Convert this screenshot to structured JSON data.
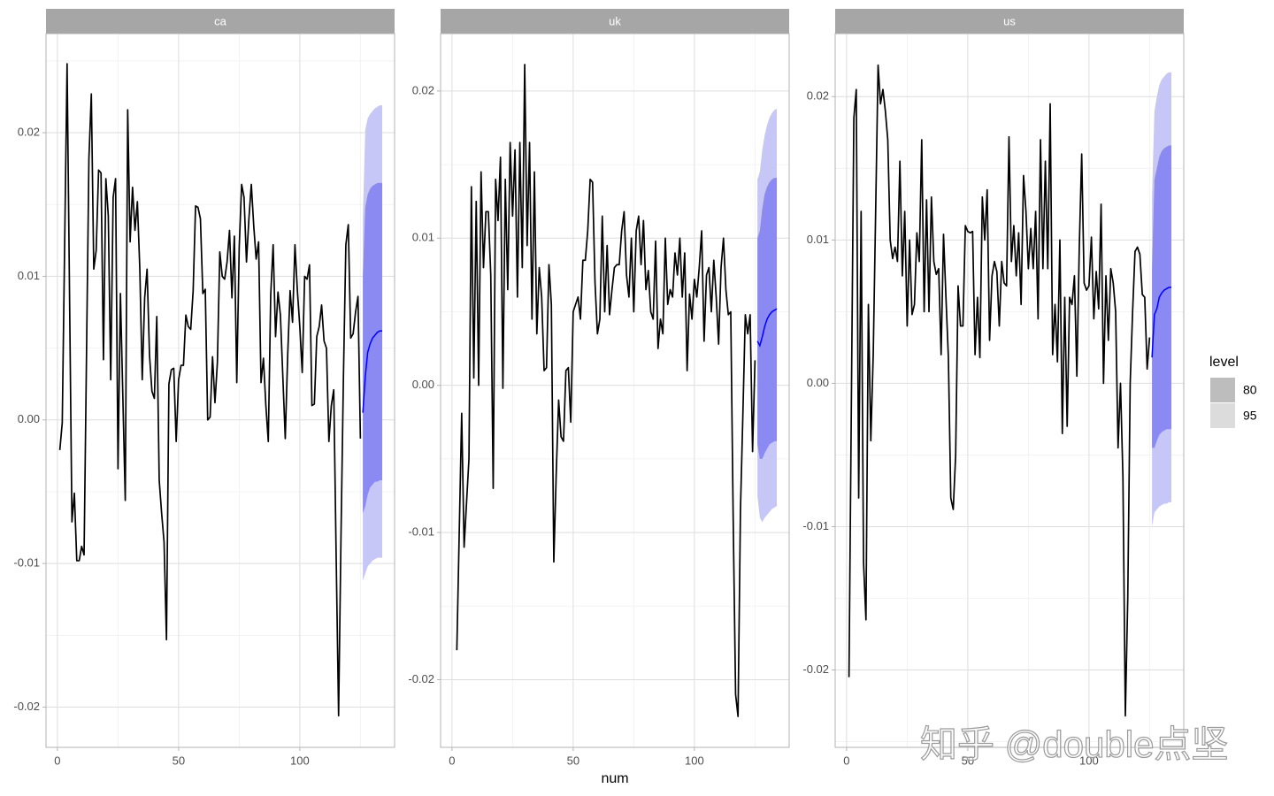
{
  "chart_data": [
    {
      "type": "line",
      "title": "ca",
      "color": "#000000",
      "x": [
        1,
        2,
        4,
        6,
        7,
        8,
        9,
        10,
        11,
        13,
        14,
        15,
        16,
        17,
        18,
        19,
        20,
        21,
        22,
        23,
        24,
        25,
        26,
        28,
        29,
        30,
        31,
        32,
        33,
        34,
        35,
        36,
        37,
        38,
        39,
        40,
        41,
        42,
        43,
        44,
        45,
        46,
        47,
        48,
        49,
        50,
        51,
        52,
        53,
        54,
        55,
        56,
        57,
        58,
        59,
        60,
        61,
        62,
        63,
        64,
        65,
        66,
        67,
        68,
        69,
        70,
        71,
        72,
        73,
        74,
        75,
        76,
        77,
        78,
        79,
        80,
        81,
        82,
        83,
        84,
        85,
        86,
        87,
        88,
        89,
        90,
        91,
        92,
        93,
        94,
        95,
        96,
        97,
        98,
        99,
        100,
        101,
        102,
        103,
        104,
        105,
        106,
        107,
        108,
        109,
        110,
        111,
        112,
        113,
        114,
        115,
        116,
        117,
        118,
        119,
        120,
        121,
        122,
        123,
        124,
        125
      ],
      "values": [
        -0.0021,
        -0.0002,
        0.0248,
        -0.0071,
        -0.0051,
        -0.0098,
        -0.0098,
        -0.0088,
        -0.0094,
        0.0182,
        0.0227,
        0.0105,
        0.0118,
        0.0174,
        0.0172,
        0.0042,
        0.0168,
        0.0142,
        0.0028,
        0.0155,
        0.0168,
        -0.0034,
        0.0088,
        -0.0056,
        0.0216,
        0.0124,
        0.0162,
        0.0132,
        0.0152,
        0.0105,
        0.0028,
        0.0085,
        0.0105,
        0.0045,
        0.002,
        0.0015,
        0.0072,
        -0.0042,
        -0.0065,
        -0.0085,
        -0.0153,
        0.0025,
        0.0035,
        0.0036,
        -0.0015,
        0.0028,
        0.0038,
        0.0038,
        0.0073,
        0.0065,
        0.0063,
        0.009,
        0.0149,
        0.0148,
        0.014,
        0.0088,
        0.0091,
        0,
        0.0002,
        0.0044,
        0.0012,
        0.004,
        0.0117,
        0.01,
        0.0098,
        0.011,
        0.0132,
        0.0085,
        0.0128,
        0.0026,
        0.012,
        0.0164,
        0.0155,
        0.011,
        0.014,
        0.0164,
        0.0135,
        0.0112,
        0.0124,
        0.0026,
        0.0043,
        0.001,
        -0.0015,
        0.0087,
        0.0122,
        0.0058,
        0.0089,
        0.0073,
        0.003,
        -0.0013,
        0.0045,
        0.009,
        0.0068,
        0.0122,
        0.009,
        0.0065,
        0.0033,
        0.01,
        0.0098,
        0.0108,
        0.001,
        0.0011,
        0.0058,
        0.0065,
        0.008,
        0.0055,
        0.005,
        -0.0015,
        0.001,
        0.0021,
        -0.0095,
        -0.0206,
        -0.008,
        0.003,
        0.0122,
        0.0136,
        0.0057,
        0.006,
        0.0075,
        0.0086,
        -0.0013
      ],
      "forecast": {
        "x": [
          126,
          127,
          128,
          129,
          130,
          131,
          132,
          133,
          134
        ],
        "color": "#0000ff",
        "mean": [
          0.0005,
          0.003,
          0.0047,
          0.0053,
          0.0057,
          0.0059,
          0.0061,
          0.0062,
          0.0062
        ],
        "lo80": [
          -0.0065,
          -0.006,
          -0.0052,
          -0.0047,
          -0.0045,
          -0.0043,
          -0.0043,
          -0.0042,
          -0.0042
        ],
        "hi80": [
          0.01,
          0.0148,
          0.0157,
          0.0161,
          0.0163,
          0.0164,
          0.0165,
          0.0165,
          0.0165
        ],
        "lo95": [
          -0.0112,
          -0.0107,
          -0.0102,
          -0.01,
          -0.0098,
          -0.0097,
          -0.0096,
          -0.0096,
          -0.0096
        ],
        "hi95": [
          0.014,
          0.0202,
          0.021,
          0.0213,
          0.0215,
          0.0217,
          0.0218,
          0.0219,
          0.0219
        ]
      },
      "xlim": [
        -4.7,
        139.1
      ],
      "xticks": [
        0,
        50,
        100
      ],
      "ylim": [
        -0.0228,
        0.0269
      ],
      "yticks": [
        -0.02,
        -0.01,
        {
          "value": 0,
          "label": "0.00"
        },
        0.01,
        0.02
      ],
      "grid": true
    },
    {
      "type": "line",
      "title": "uk",
      "color": "#000000",
      "x": [
        2,
        4,
        5,
        7,
        8,
        9,
        10,
        11,
        12,
        13,
        14,
        15,
        16,
        17,
        18,
        19,
        20,
        21,
        22,
        23,
        24,
        25,
        26,
        27,
        28,
        29,
        30,
        31,
        32,
        33,
        34,
        35,
        36,
        37,
        38,
        39,
        40,
        41,
        42,
        43,
        44,
        45,
        46,
        47,
        48,
        49,
        50,
        51,
        52,
        53,
        54,
        55,
        56,
        57,
        58,
        59,
        60,
        61,
        62,
        63,
        64,
        65,
        66,
        67,
        68,
        69,
        70,
        71,
        72,
        73,
        74,
        75,
        76,
        77,
        78,
        79,
        80,
        81,
        82,
        83,
        84,
        85,
        86,
        87,
        88,
        89,
        90,
        91,
        92,
        93,
        94,
        95,
        96,
        97,
        98,
        99,
        100,
        101,
        102,
        103,
        104,
        105,
        106,
        107,
        108,
        109,
        110,
        111,
        112,
        113,
        114,
        115,
        116,
        117,
        118,
        119,
        120,
        121,
        122,
        123,
        124,
        125
      ],
      "values": [
        -0.018,
        -0.0019,
        -0.011,
        -0.005,
        0.0135,
        0.0005,
        0.0125,
        0,
        0.0145,
        0.008,
        0.0118,
        0.0118,
        0.0075,
        -0.007,
        0.014,
        0.0112,
        0.0155,
        -0.0002,
        0.014,
        0.0065,
        0.0165,
        0.0115,
        0.016,
        0.006,
        0.0165,
        0.008,
        0.0218,
        0.0095,
        0.0165,
        0.0045,
        0.0145,
        0.0035,
        0.008,
        0.006,
        0.001,
        0.0012,
        0.0082,
        0.0055,
        -0.012,
        -0.006,
        -0.001,
        -0.0035,
        -0.0038,
        0.001,
        0.0012,
        -0.0025,
        0.005,
        0.0055,
        0.006,
        0.0045,
        0.0085,
        0.0085,
        0.0105,
        0.014,
        0.0138,
        0.007,
        0.0035,
        0.0045,
        0.0115,
        0.005,
        0.0095,
        0.0048,
        0.0065,
        0.008,
        0.0082,
        0.0082,
        0.0105,
        0.0118,
        0.0075,
        0.006,
        0.01,
        0.005,
        0.0105,
        0.0115,
        0.0082,
        0.0112,
        0.0065,
        0.0078,
        0.005,
        0.0045,
        0.0098,
        0.0025,
        0.0045,
        0.0035,
        0.01,
        0.0055,
        0.0065,
        0.006,
        0.009,
        0.0075,
        0.01,
        0.006,
        0.009,
        0.001,
        0.0062,
        0.0045,
        0.0072,
        0.006,
        0.008,
        0.0105,
        0.003,
        0.0075,
        0.008,
        0.005,
        0.0085,
        0.006,
        0.0028,
        0.008,
        0.01,
        0.0065,
        0.0048,
        0.005,
        -0.009,
        -0.021,
        -0.0225,
        -0.0085,
        -0.002,
        0.0048,
        0.0035,
        0.0048,
        -0.0045,
        0.0017
      ],
      "forecast": {
        "x": [
          126,
          127,
          128,
          129,
          130,
          131,
          132,
          133,
          134
        ],
        "color": "#0000ff",
        "mean": [
          0.003,
          0.0027,
          0.0033,
          0.004,
          0.0045,
          0.0048,
          0.005,
          0.0051,
          0.0052
        ],
        "lo80": [
          -0.004,
          -0.005,
          -0.005,
          -0.0046,
          -0.0043,
          -0.004,
          -0.0039,
          -0.0038,
          -0.0038
        ],
        "hi80": [
          0.01,
          0.0105,
          0.012,
          0.013,
          0.0135,
          0.0138,
          0.014,
          0.0141,
          0.0141
        ],
        "lo95": [
          -0.0075,
          -0.009,
          -0.0093,
          -0.009,
          -0.0088,
          -0.0086,
          -0.0084,
          -0.0083,
          -0.0082
        ],
        "hi95": [
          0.014,
          0.0145,
          0.016,
          0.017,
          0.0177,
          0.0182,
          0.0185,
          0.0187,
          0.0188
        ]
      },
      "xlim": [
        -4.7,
        139.1
      ],
      "xticks": [
        0,
        50,
        100
      ],
      "ylim": [
        -0.0246,
        0.0239
      ],
      "yticks": [
        -0.02,
        -0.01,
        {
          "value": 0,
          "label": "0.00"
        },
        0.01,
        0.02
      ],
      "grid": true
    },
    {
      "type": "line",
      "title": "us",
      "color": "#000000",
      "x": [
        1,
        3,
        4,
        5,
        6,
        7,
        8,
        9,
        10,
        11,
        12,
        13,
        14,
        15,
        16,
        17,
        18,
        19,
        20,
        21,
        22,
        23,
        24,
        25,
        26,
        27,
        28,
        29,
        30,
        31,
        32,
        33,
        34,
        35,
        36,
        37,
        38,
        39,
        40,
        41,
        42,
        43,
        44,
        45,
        46,
        47,
        48,
        49,
        50,
        51,
        52,
        53,
        54,
        55,
        56,
        57,
        58,
        59,
        60,
        61,
        62,
        63,
        64,
        65,
        66,
        67,
        68,
        69,
        70,
        71,
        72,
        73,
        74,
        75,
        76,
        77,
        78,
        79,
        80,
        81,
        82,
        83,
        84,
        85,
        86,
        87,
        88,
        89,
        90,
        91,
        92,
        93,
        94,
        95,
        96,
        97,
        98,
        99,
        100,
        101,
        102,
        103,
        104,
        105,
        106,
        107,
        108,
        109,
        110,
        111,
        112,
        113,
        114,
        115,
        116,
        117,
        118,
        119,
        120,
        121,
        122,
        123,
        124,
        125
      ],
      "values": [
        -0.0205,
        0.0185,
        0.0205,
        -0.008,
        0.012,
        -0.0125,
        -0.0165,
        0.0055,
        -0.004,
        0.002,
        0.012,
        0.0222,
        0.0195,
        0.0205,
        0.019,
        0.017,
        0.01,
        0.0087,
        0.0095,
        0.0085,
        0.0155,
        0.0075,
        0.012,
        0.004,
        0.01,
        0.0048,
        0.0055,
        0.0105,
        0.0085,
        0.017,
        0.005,
        0.0128,
        0.005,
        0.013,
        0.0085,
        0.0076,
        0.008,
        0.002,
        0.0104,
        0.006,
        0.0018,
        -0.008,
        -0.0088,
        -0.005,
        0.0068,
        0.004,
        0.004,
        0.011,
        0.0106,
        0.0105,
        0.0106,
        0.002,
        0.006,
        0.0018,
        0.013,
        0.01,
        0.0135,
        0.003,
        0.0075,
        0.0085,
        0.0078,
        0.004,
        0.0085,
        0.007,
        0.0068,
        0.0172,
        0.0085,
        0.011,
        0.0075,
        0.0105,
        0.0055,
        0.0145,
        0.012,
        0.008,
        0.0108,
        0.008,
        0.012,
        0.0045,
        0.017,
        0.008,
        0.0155,
        0.008,
        0.0195,
        0.002,
        0.0055,
        0.0015,
        0.01,
        -0.0035,
        0.006,
        -0.003,
        0.006,
        0.0055,
        0.0075,
        0.0005,
        0.0095,
        0.016,
        0.007,
        0.0065,
        0.0068,
        0.0102,
        0.0045,
        0.0078,
        0.0052,
        0.0125,
        0,
        0.0075,
        0.003,
        0.008,
        0.007,
        0.005,
        -0.0045,
        0,
        -0.0065,
        -0.0232,
        -0.015,
        0,
        0.005,
        0.0092,
        0.0095,
        0.009,
        0.0062,
        0.006,
        0.001,
        0.0032
      ],
      "forecast": {
        "x": [
          126,
          127,
          128,
          129,
          130,
          131,
          132,
          133,
          134
        ],
        "color": "#0000ff",
        "mean": [
          0.0018,
          0.0048,
          0.0052,
          0.006,
          0.0063,
          0.0065,
          0.0066,
          0.0067,
          0.0067
        ],
        "lo80": [
          -0.0045,
          -0.0045,
          -0.004,
          -0.0036,
          -0.0034,
          -0.0033,
          -0.0032,
          -0.0032,
          -0.0032
        ],
        "hi80": [
          0.008,
          0.0142,
          0.015,
          0.0158,
          0.0162,
          0.0164,
          0.0165,
          0.0166,
          0.0166
        ],
        "lo95": [
          -0.01,
          -0.009,
          -0.0088,
          -0.0086,
          -0.0085,
          -0.0084,
          -0.0084,
          -0.0083,
          -0.0083
        ],
        "hi95": [
          0.013,
          0.019,
          0.02,
          0.0208,
          0.0212,
          0.0214,
          0.0216,
          0.0217,
          0.0217
        ]
      },
      "xlim": [
        -4.7,
        139.1
      ],
      "xticks": [
        0,
        50,
        100
      ],
      "ylim": [
        -0.0254,
        0.0244
      ],
      "yticks": [
        -0.02,
        -0.01,
        {
          "value": 0,
          "label": "0.00"
        },
        0.01,
        0.02
      ],
      "grid": true
    }
  ],
  "x_label": "num",
  "band_colors": {
    "80": "#8a8af2",
    "95": "#c6c6f7"
  },
  "legend": {
    "title": "level",
    "position": "right",
    "entries": [
      {
        "label": "80",
        "color": "#bdbdbd"
      },
      {
        "label": "95",
        "color": "#dcdcdc"
      }
    ]
  },
  "watermark": "知乎 @double点坚"
}
